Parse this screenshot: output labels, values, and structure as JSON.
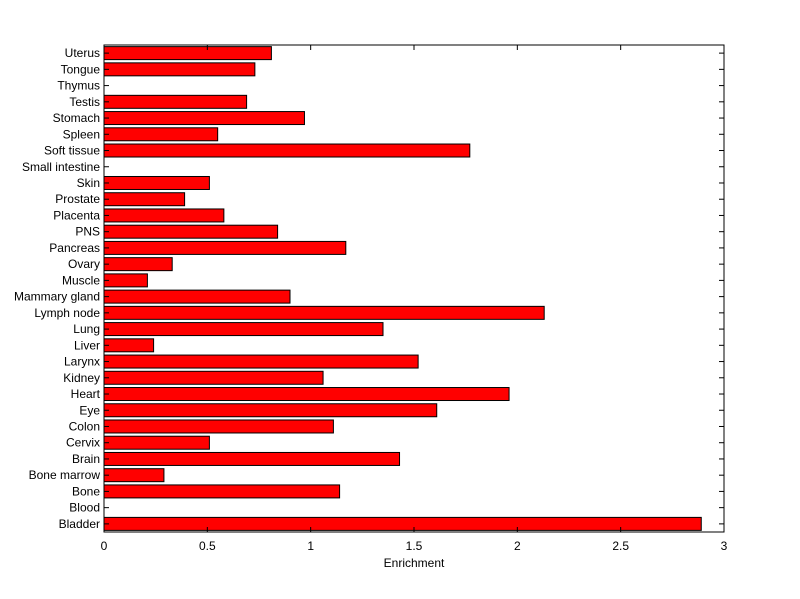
{
  "chart_data": {
    "type": "bar",
    "orientation": "horizontal",
    "title": "",
    "xlabel": "Enrichment",
    "ylabel": "",
    "xlim": [
      0,
      3
    ],
    "x_ticks": [
      "0",
      "0.5",
      "1",
      "1.5",
      "2",
      "2.5",
      "3"
    ],
    "grid": false,
    "bar_color": "#ff0000",
    "categories": [
      "Bladder",
      "Blood",
      "Bone",
      "Bone marrow",
      "Brain",
      "Cervix",
      "Colon",
      "Eye",
      "Heart",
      "Kidney",
      "Larynx",
      "Liver",
      "Lung",
      "Lymph node",
      "Mammary gland",
      "Muscle",
      "Ovary",
      "Pancreas",
      "PNS",
      "Placenta",
      "Prostate",
      "Skin",
      "Small intestine",
      "Soft tissue",
      "Spleen",
      "Stomach",
      "Testis",
      "Thymus",
      "Tongue",
      "Uterus"
    ],
    "values": [
      2.89,
      0,
      1.14,
      0.29,
      1.43,
      0.51,
      1.11,
      1.61,
      1.96,
      1.06,
      1.52,
      0.24,
      1.35,
      2.13,
      0.9,
      0.21,
      0.33,
      1.17,
      0.84,
      0.58,
      0.39,
      0.51,
      0,
      1.77,
      0.55,
      0.97,
      0.69,
      0,
      0.73,
      0.81
    ]
  }
}
